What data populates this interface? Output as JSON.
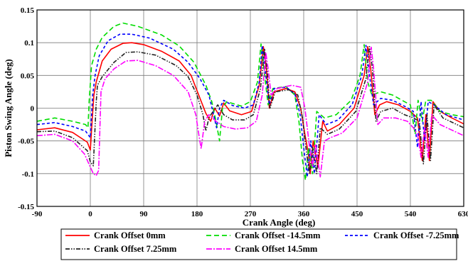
{
  "chart_data": {
    "type": "line",
    "xlabel": "Crank Angle (deg)",
    "ylabel": "Piston Swing Angle (deg)",
    "xlim": [
      -90,
      630
    ],
    "ylim": [
      -0.15,
      0.15
    ],
    "x_ticks": [
      -90,
      0,
      90,
      180,
      270,
      360,
      450,
      540,
      630
    ],
    "y_ticks": [
      -0.15,
      -0.1,
      -0.05,
      0,
      0.05,
      0.1,
      0.15
    ],
    "x_tick_labels": [
      "-90",
      "0",
      "90",
      "180",
      "270",
      "360",
      "450",
      "540",
      "630"
    ],
    "y_tick_labels": [
      "-0.15",
      "-0.1",
      "-0.05",
      "0",
      "0.05",
      "0.1",
      "0.15"
    ],
    "grid": true,
    "legend_position": "bottom",
    "series": [
      {
        "name": "Crank Offset 0mm",
        "color": "#ff0000",
        "dash": "solid",
        "points": [
          [
            -90,
            -0.033
          ],
          [
            -60,
            -0.03
          ],
          [
            -30,
            -0.037
          ],
          [
            -5,
            -0.052
          ],
          [
            0,
            -0.064
          ],
          [
            3,
            -0.02
          ],
          [
            6,
            0.02
          ],
          [
            10,
            0.04
          ],
          [
            20,
            0.072
          ],
          [
            35,
            0.09
          ],
          [
            55,
            0.099
          ],
          [
            70,
            0.1
          ],
          [
            90,
            0.097
          ],
          [
            120,
            0.087
          ],
          [
            150,
            0.072
          ],
          [
            170,
            0.05
          ],
          [
            185,
            0.015
          ],
          [
            195,
            -0.008
          ],
          [
            203,
            -0.02
          ],
          [
            210,
            0
          ],
          [
            218,
            -0.012
          ],
          [
            225,
            0.008
          ],
          [
            235,
            -0.004
          ],
          [
            255,
            -0.01
          ],
          [
            272,
            -0.005
          ],
          [
            285,
            0.035
          ],
          [
            292,
            0.094
          ],
          [
            297,
            0.06
          ],
          [
            302,
            0
          ],
          [
            310,
            0.025
          ],
          [
            330,
            0.03
          ],
          [
            345,
            0.025
          ],
          [
            355,
            0
          ],
          [
            362,
            -0.04
          ],
          [
            368,
            -0.07
          ],
          [
            371,
            -0.1
          ],
          [
            376,
            -0.05
          ],
          [
            384,
            -0.09
          ],
          [
            392,
            -0.02
          ],
          [
            400,
            -0.035
          ],
          [
            420,
            -0.025
          ],
          [
            445,
            0
          ],
          [
            462,
            0.05
          ],
          [
            468,
            0.094
          ],
          [
            473,
            0.06
          ],
          [
            480,
            -0.01
          ],
          [
            488,
            0.005
          ],
          [
            500,
            0.01
          ],
          [
            520,
            0.005
          ],
          [
            540,
            -0.005
          ],
          [
            552,
            -0.015
          ],
          [
            560,
            -0.08
          ],
          [
            566,
            -0.01
          ],
          [
            572,
            -0.08
          ],
          [
            578,
            0.01
          ],
          [
            590,
            -0.005
          ],
          [
            610,
            -0.015
          ],
          [
            630,
            -0.024
          ]
        ]
      },
      {
        "name": "Crank Offset -14.5mm",
        "color": "#00dd00",
        "dash": "7,4",
        "points": [
          [
            -90,
            -0.02
          ],
          [
            -60,
            -0.015
          ],
          [
            -30,
            -0.02
          ],
          [
            -8,
            -0.025
          ],
          [
            -4,
            -0.03
          ],
          [
            -2,
            0.01
          ],
          [
            2,
            0.065
          ],
          [
            10,
            0.09
          ],
          [
            20,
            0.108
          ],
          [
            40,
            0.125
          ],
          [
            55,
            0.13
          ],
          [
            80,
            0.125
          ],
          [
            120,
            0.112
          ],
          [
            150,
            0.095
          ],
          [
            175,
            0.07
          ],
          [
            195,
            0.035
          ],
          [
            205,
            0.01
          ],
          [
            212,
            -0.02
          ],
          [
            218,
            -0.05
          ],
          [
            223,
            0
          ],
          [
            230,
            0.01
          ],
          [
            255,
            0.003
          ],
          [
            270,
            0.01
          ],
          [
            282,
            0.04
          ],
          [
            288,
            0.098
          ],
          [
            294,
            0.05
          ],
          [
            300,
            0.005
          ],
          [
            308,
            0.03
          ],
          [
            330,
            0.033
          ],
          [
            345,
            0.02
          ],
          [
            352,
            -0.02
          ],
          [
            358,
            -0.08
          ],
          [
            363,
            -0.11
          ],
          [
            368,
            -0.06
          ],
          [
            375,
            -0.1
          ],
          [
            382,
            -0.005
          ],
          [
            395,
            -0.015
          ],
          [
            415,
            -0.01
          ],
          [
            440,
            0.012
          ],
          [
            455,
            0.05
          ],
          [
            462,
            0.097
          ],
          [
            468,
            0.04
          ],
          [
            475,
            0.02
          ],
          [
            490,
            0.025
          ],
          [
            510,
            0.02
          ],
          [
            530,
            0.01
          ],
          [
            540,
            0.005
          ],
          [
            548,
            -0.04
          ],
          [
            553,
            0.012
          ],
          [
            560,
            -0.02
          ],
          [
            566,
            0.012
          ],
          [
            575,
            0.012
          ],
          [
            590,
            -0.005
          ],
          [
            610,
            -0.01
          ],
          [
            630,
            -0.013
          ]
        ]
      },
      {
        "name": "Crank Offset -7.25mm",
        "color": "#0000ff",
        "dash": "4,3",
        "points": [
          [
            -90,
            -0.025
          ],
          [
            -60,
            -0.022
          ],
          [
            -30,
            -0.028
          ],
          [
            -8,
            -0.035
          ],
          [
            0,
            -0.045
          ],
          [
            4,
            0.02
          ],
          [
            8,
            0.05
          ],
          [
            15,
            0.08
          ],
          [
            30,
            0.103
          ],
          [
            50,
            0.113
          ],
          [
            70,
            0.113
          ],
          [
            100,
            0.107
          ],
          [
            140,
            0.09
          ],
          [
            165,
            0.07
          ],
          [
            185,
            0.045
          ],
          [
            200,
            0.02
          ],
          [
            208,
            -0.01
          ],
          [
            213,
            -0.03
          ],
          [
            218,
            0
          ],
          [
            225,
            0.012
          ],
          [
            240,
            0.004
          ],
          [
            260,
            0
          ],
          [
            275,
            0.005
          ],
          [
            285,
            0.04
          ],
          [
            290,
            0.096
          ],
          [
            296,
            0.05
          ],
          [
            302,
            0.005
          ],
          [
            310,
            0.03
          ],
          [
            330,
            0.032
          ],
          [
            345,
            0.022
          ],
          [
            354,
            -0.01
          ],
          [
            360,
            -0.06
          ],
          [
            366,
            -0.105
          ],
          [
            372,
            -0.05
          ],
          [
            378,
            -0.1
          ],
          [
            386,
            -0.01
          ],
          [
            398,
            -0.025
          ],
          [
            418,
            -0.018
          ],
          [
            442,
            0.006
          ],
          [
            458,
            0.05
          ],
          [
            465,
            0.096
          ],
          [
            471,
            0.05
          ],
          [
            478,
            0.005
          ],
          [
            490,
            0.015
          ],
          [
            510,
            0.012
          ],
          [
            530,
            0.003
          ],
          [
            545,
            -0.005
          ],
          [
            552,
            -0.06
          ],
          [
            558,
            0.01
          ],
          [
            564,
            -0.05
          ],
          [
            570,
            0.01
          ],
          [
            580,
            0.005
          ],
          [
            600,
            -0.01
          ],
          [
            630,
            -0.018
          ]
        ]
      },
      {
        "name": "Crank Offset 7.25mm",
        "color": "#222222",
        "dash": "6,2,1.5,2,1.5,2",
        "points": [
          [
            -90,
            -0.036
          ],
          [
            -60,
            -0.035
          ],
          [
            -30,
            -0.045
          ],
          [
            -5,
            -0.065
          ],
          [
            0,
            -0.082
          ],
          [
            5,
            -0.088
          ],
          [
            10,
            0.01
          ],
          [
            12,
            0.035
          ],
          [
            20,
            0.048
          ],
          [
            40,
            0.07
          ],
          [
            60,
            0.085
          ],
          [
            80,
            0.086
          ],
          [
            110,
            0.081
          ],
          [
            145,
            0.065
          ],
          [
            165,
            0.048
          ],
          [
            180,
            0.02
          ],
          [
            190,
            -0.01
          ],
          [
            195,
            -0.035
          ],
          [
            200,
            -0.015
          ],
          [
            207,
            -0.005
          ],
          [
            215,
            0.005
          ],
          [
            225,
            -0.01
          ],
          [
            240,
            -0.018
          ],
          [
            260,
            -0.018
          ],
          [
            275,
            -0.01
          ],
          [
            287,
            0.03
          ],
          [
            294,
            0.091
          ],
          [
            299,
            0.05
          ],
          [
            303,
            0
          ],
          [
            312,
            0.025
          ],
          [
            335,
            0.028
          ],
          [
            350,
            0.02
          ],
          [
            358,
            -0.015
          ],
          [
            365,
            -0.07
          ],
          [
            370,
            -0.1
          ],
          [
            375,
            -0.06
          ],
          [
            382,
            -0.1
          ],
          [
            388,
            -0.03
          ],
          [
            400,
            -0.04
          ],
          [
            420,
            -0.032
          ],
          [
            448,
            -0.005
          ],
          [
            465,
            0.045
          ],
          [
            471,
            0.094
          ],
          [
            476,
            0.06
          ],
          [
            482,
            -0.02
          ],
          [
            490,
            -0.005
          ],
          [
            510,
            0
          ],
          [
            530,
            -0.01
          ],
          [
            545,
            -0.015
          ],
          [
            555,
            -0.02
          ],
          [
            562,
            -0.085
          ],
          [
            568,
            -0.01
          ],
          [
            574,
            -0.08
          ],
          [
            580,
            0.005
          ],
          [
            595,
            -0.015
          ],
          [
            630,
            -0.03
          ]
        ]
      },
      {
        "name": "Crank Offset 14.5mm",
        "color": "#ff00ff",
        "dash": "8,2,2,2",
        "points": [
          [
            -90,
            -0.042
          ],
          [
            -60,
            -0.04
          ],
          [
            -30,
            -0.05
          ],
          [
            -10,
            -0.07
          ],
          [
            0,
            -0.09
          ],
          [
            5,
            -0.1
          ],
          [
            10,
            -0.103
          ],
          [
            14,
            -0.095
          ],
          [
            18,
            0.025
          ],
          [
            25,
            0.045
          ],
          [
            40,
            0.06
          ],
          [
            60,
            0.072
          ],
          [
            80,
            0.073
          ],
          [
            110,
            0.065
          ],
          [
            140,
            0.05
          ],
          [
            165,
            0.025
          ],
          [
            178,
            -0.01
          ],
          [
            183,
            -0.04
          ],
          [
            187,
            -0.062
          ],
          [
            193,
            -0.02
          ],
          [
            200,
            -0.01
          ],
          [
            212,
            -0.02
          ],
          [
            225,
            -0.028
          ],
          [
            245,
            -0.032
          ],
          [
            265,
            -0.03
          ],
          [
            280,
            -0.02
          ],
          [
            290,
            0.02
          ],
          [
            296,
            0.085
          ],
          [
            300,
            0.06
          ],
          [
            305,
            0.02
          ],
          [
            315,
            0.03
          ],
          [
            340,
            0.035
          ],
          [
            355,
            0.032
          ],
          [
            362,
            0
          ],
          [
            370,
            -0.06
          ],
          [
            375,
            -0.09
          ],
          [
            380,
            -0.055
          ],
          [
            388,
            -0.105
          ],
          [
            395,
            -0.05
          ],
          [
            405,
            -0.045
          ],
          [
            425,
            -0.038
          ],
          [
            450,
            -0.015
          ],
          [
            468,
            0.04
          ],
          [
            474,
            0.093
          ],
          [
            478,
            0.06
          ],
          [
            485,
            -0.025
          ],
          [
            495,
            -0.015
          ],
          [
            515,
            -0.015
          ],
          [
            535,
            -0.02
          ],
          [
            545,
            -0.03
          ],
          [
            552,
            -0.04
          ],
          [
            558,
            -0.075
          ],
          [
            564,
            -0.03
          ],
          [
            570,
            -0.075
          ],
          [
            576,
            -0.01
          ],
          [
            590,
            -0.025
          ],
          [
            630,
            -0.042
          ]
        ]
      }
    ]
  }
}
